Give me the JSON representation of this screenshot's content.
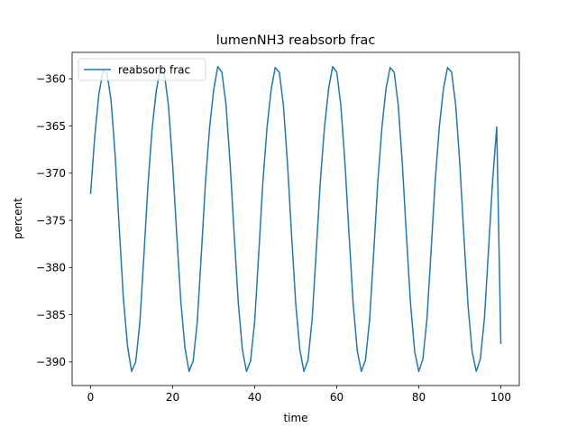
{
  "chart_data": {
    "type": "line",
    "title": "lumenNH3 reabsorb frac",
    "xlabel": "time",
    "ylabel": "percent",
    "xlim": [
      -4.5,
      104.5
    ],
    "ylim": [
      -392.5,
      -357.2
    ],
    "x_ticks": [
      0,
      20,
      40,
      60,
      80,
      100
    ],
    "y_ticks": [
      -360,
      -365,
      -370,
      -375,
      -380,
      -385,
      -390
    ],
    "grid": false,
    "legend_position": "upper left",
    "series": [
      {
        "name": "reabsorb frac",
        "color": "#1f77b4",
        "x": [
          0,
          1,
          2,
          3,
          4,
          5,
          6,
          7,
          8,
          9,
          10,
          11,
          12,
          13,
          14,
          15,
          16,
          17,
          18,
          19,
          20,
          21,
          22,
          23,
          24,
          25,
          26,
          27,
          28,
          29,
          30,
          31,
          32,
          33,
          34,
          35,
          36,
          37,
          38,
          39,
          40,
          41,
          42,
          43,
          44,
          45,
          46,
          47,
          48,
          49,
          50,
          51,
          52,
          53,
          54,
          55,
          56,
          57,
          58,
          59,
          60,
          61,
          62,
          63,
          64,
          65,
          66,
          67,
          68,
          69,
          70,
          71,
          72,
          73,
          74,
          75,
          76,
          77,
          78,
          79,
          80,
          81,
          82,
          83,
          84,
          85,
          86,
          87,
          88,
          89,
          90,
          91,
          92,
          93,
          94,
          95,
          96,
          97,
          98,
          99,
          100
        ],
        "values": [
          -372.2,
          -366.2,
          -361.7,
          -359.2,
          -359.4,
          -362.3,
          -368.2,
          -375.9,
          -383.3,
          -388.3,
          -391.0,
          -390.0,
          -385.9,
          -378.7,
          -371.2,
          -365.3,
          -361.3,
          -358.9,
          -359.5,
          -362.9,
          -369.1,
          -376.5,
          -383.6,
          -388.5,
          -391.0,
          -389.9,
          -385.8,
          -378.5,
          -371.0,
          -365.2,
          -361.2,
          -358.7,
          -359.3,
          -362.7,
          -368.9,
          -376.5,
          -383.7,
          -388.7,
          -391.0,
          -389.9,
          -385.7,
          -378.4,
          -370.9,
          -365.2,
          -361.2,
          -358.8,
          -359.3,
          -362.8,
          -369.0,
          -376.6,
          -383.8,
          -388.7,
          -391.0,
          -389.8,
          -385.5,
          -378.3,
          -370.9,
          -365.2,
          -361.1,
          -358.7,
          -359.3,
          -362.8,
          -368.9,
          -376.5,
          -383.8,
          -388.8,
          -391.0,
          -389.8,
          -385.6,
          -378.5,
          -371.0,
          -365.2,
          -361.1,
          -358.8,
          -359.3,
          -362.8,
          -369.1,
          -376.7,
          -383.9,
          -388.9,
          -391.0,
          -389.7,
          -385.4,
          -378.2,
          -370.8,
          -365.1,
          -361.1,
          -358.8,
          -359.3,
          -362.8,
          -369.0,
          -376.7,
          -384.0,
          -388.9,
          -391.0,
          -389.7,
          -385.4,
          -378.1,
          -370.8,
          -365.1,
          -388.1
        ]
      }
    ]
  }
}
